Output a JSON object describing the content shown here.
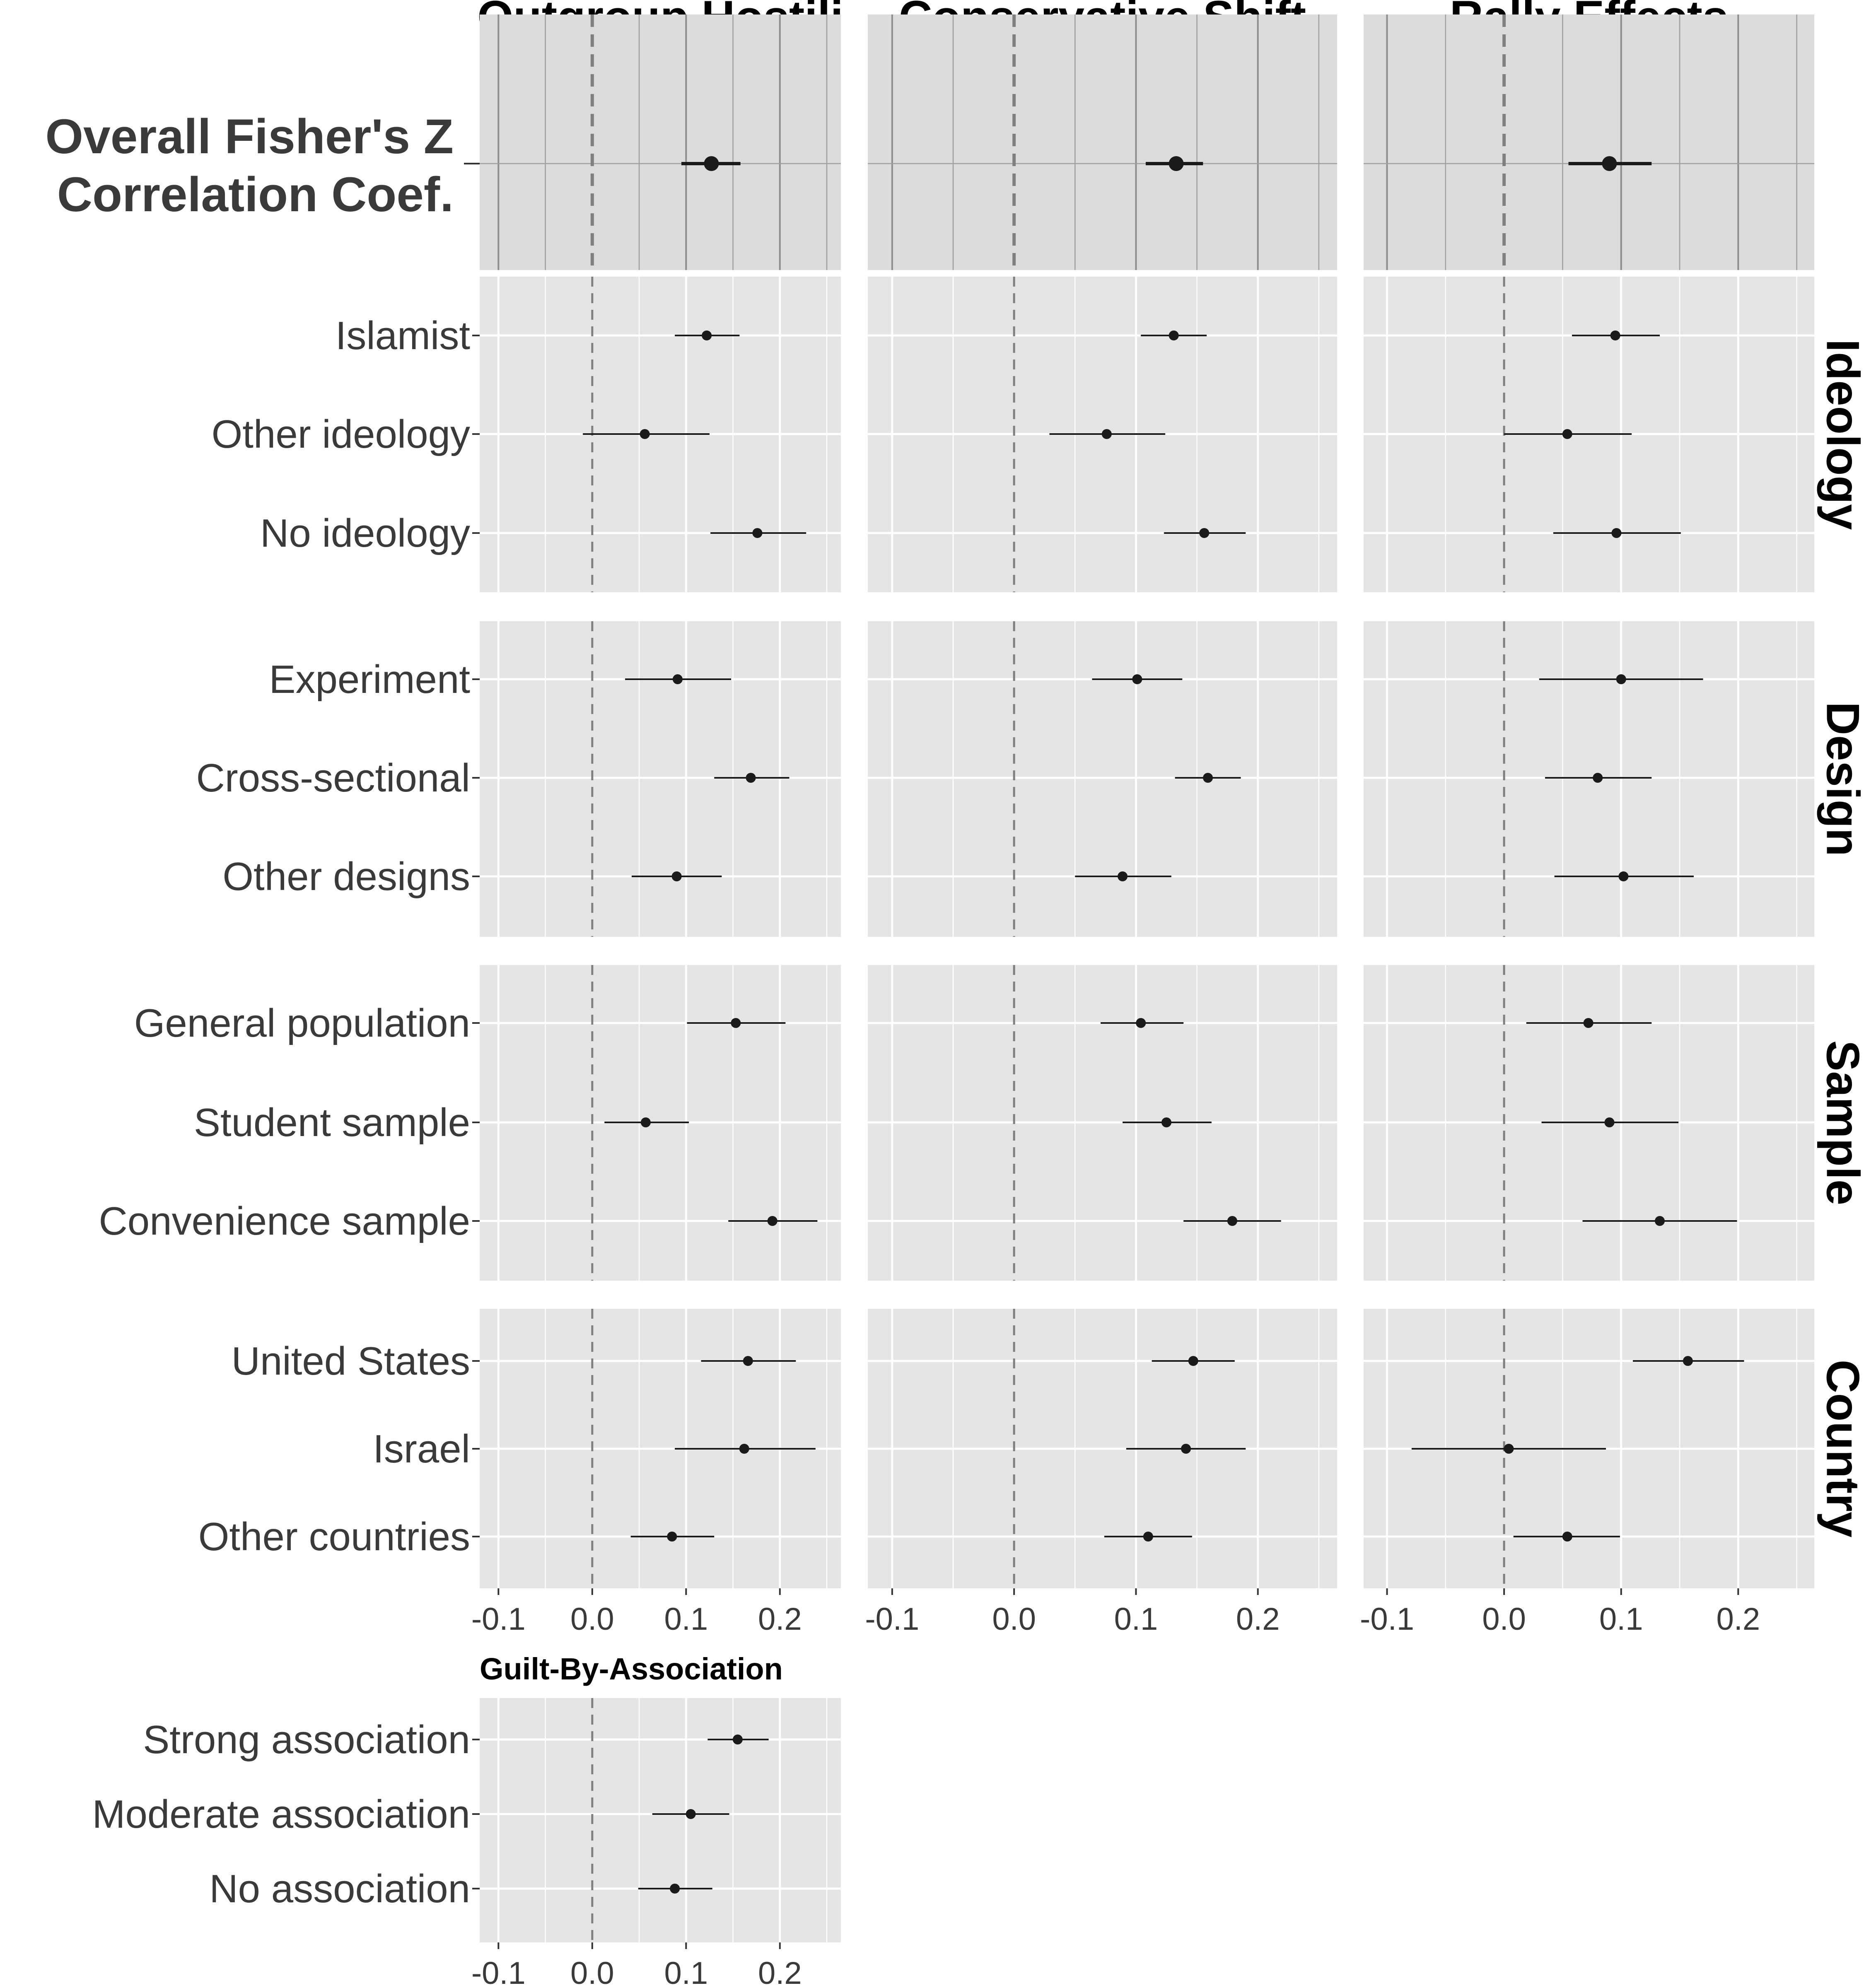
{
  "chart_data": {
    "type": "forest",
    "columns": [
      "Outgroup Hostili",
      "Conservative Shift",
      "Rally Effects"
    ],
    "x_ticks": [
      "-0.1",
      "0.0",
      "0.1",
      "0.2"
    ],
    "xlim": [
      -0.12,
      0.265
    ],
    "overall": {
      "label_lines": [
        "Overall Fisher's Z",
        "Correlation Coef."
      ],
      "values": [
        {
          "est": 0.127,
          "lo": 0.095,
          "hi": 0.158
        },
        {
          "est": 0.133,
          "lo": 0.108,
          "hi": 0.155
        },
        {
          "est": 0.09,
          "lo": 0.055,
          "hi": 0.126
        }
      ]
    },
    "groups": [
      {
        "strip": "Ideology",
        "rows": [
          {
            "label": "Islamist",
            "values": [
              {
                "est": 0.122,
                "lo": 0.088,
                "hi": 0.157
              },
              {
                "est": 0.131,
                "lo": 0.104,
                "hi": 0.158
              },
              {
                "est": 0.095,
                "lo": 0.058,
                "hi": 0.133
              }
            ]
          },
          {
            "label": "Other ideology",
            "values": [
              {
                "est": 0.056,
                "lo": -0.01,
                "hi": 0.125
              },
              {
                "est": 0.076,
                "lo": 0.029,
                "hi": 0.124
              },
              {
                "est": 0.054,
                "lo": 0.0,
                "hi": 0.109
              }
            ]
          },
          {
            "label": "No ideology",
            "values": [
              {
                "est": 0.176,
                "lo": 0.126,
                "hi": 0.228
              },
              {
                "est": 0.156,
                "lo": 0.123,
                "hi": 0.19
              },
              {
                "est": 0.096,
                "lo": 0.042,
                "hi": 0.151
              }
            ]
          }
        ]
      },
      {
        "strip": "Design",
        "rows": [
          {
            "label": "Experiment",
            "values": [
              {
                "est": 0.091,
                "lo": 0.035,
                "hi": 0.148
              },
              {
                "est": 0.101,
                "lo": 0.064,
                "hi": 0.138
              },
              {
                "est": 0.1,
                "lo": 0.03,
                "hi": 0.17
              }
            ]
          },
          {
            "label": "Cross-sectional",
            "values": [
              {
                "est": 0.169,
                "lo": 0.13,
                "hi": 0.21
              },
              {
                "est": 0.159,
                "lo": 0.132,
                "hi": 0.186
              },
              {
                "est": 0.08,
                "lo": 0.035,
                "hi": 0.126
              }
            ]
          },
          {
            "label": "Other designs",
            "values": [
              {
                "est": 0.09,
                "lo": 0.042,
                "hi": 0.138
              },
              {
                "est": 0.089,
                "lo": 0.05,
                "hi": 0.129
              },
              {
                "est": 0.102,
                "lo": 0.043,
                "hi": 0.162
              }
            ]
          }
        ]
      },
      {
        "strip": "Sample",
        "rows": [
          {
            "label": "General population",
            "values": [
              {
                "est": 0.153,
                "lo": 0.101,
                "hi": 0.206
              },
              {
                "est": 0.104,
                "lo": 0.071,
                "hi": 0.139
              },
              {
                "est": 0.072,
                "lo": 0.019,
                "hi": 0.126
              }
            ]
          },
          {
            "label": "Student sample",
            "values": [
              {
                "est": 0.057,
                "lo": 0.013,
                "hi": 0.103
              },
              {
                "est": 0.125,
                "lo": 0.089,
                "hi": 0.162
              },
              {
                "est": 0.09,
                "lo": 0.032,
                "hi": 0.149
              }
            ]
          },
          {
            "label": "Convenience sample",
            "values": [
              {
                "est": 0.192,
                "lo": 0.145,
                "hi": 0.24
              },
              {
                "est": 0.179,
                "lo": 0.139,
                "hi": 0.219
              },
              {
                "est": 0.133,
                "lo": 0.067,
                "hi": 0.199
              }
            ]
          }
        ]
      },
      {
        "strip": "Country",
        "rows": [
          {
            "label": "United States",
            "values": [
              {
                "est": 0.166,
                "lo": 0.116,
                "hi": 0.217
              },
              {
                "est": 0.147,
                "lo": 0.113,
                "hi": 0.181
              },
              {
                "est": 0.157,
                "lo": 0.11,
                "hi": 0.205
              }
            ]
          },
          {
            "label": "Israel",
            "values": [
              {
                "est": 0.162,
                "lo": 0.088,
                "hi": 0.238
              },
              {
                "est": 0.141,
                "lo": 0.092,
                "hi": 0.19
              },
              {
                "est": 0.004,
                "lo": -0.079,
                "hi": 0.087
              }
            ]
          },
          {
            "label": "Other countries",
            "values": [
              {
                "est": 0.085,
                "lo": 0.041,
                "hi": 0.13
              },
              {
                "est": 0.11,
                "lo": 0.074,
                "hi": 0.146
              },
              {
                "est": 0.054,
                "lo": 0.008,
                "hi": 0.099
              }
            ]
          }
        ]
      }
    ],
    "guilt": {
      "title": "Guilt-By-Association",
      "rows": [
        {
          "label": "Strong association",
          "est": 0.155,
          "lo": 0.123,
          "hi": 0.188
        },
        {
          "label": "Moderate association",
          "est": 0.105,
          "lo": 0.064,
          "hi": 0.146
        },
        {
          "label": "No association",
          "est": 0.088,
          "lo": 0.049,
          "hi": 0.128
        }
      ]
    }
  }
}
